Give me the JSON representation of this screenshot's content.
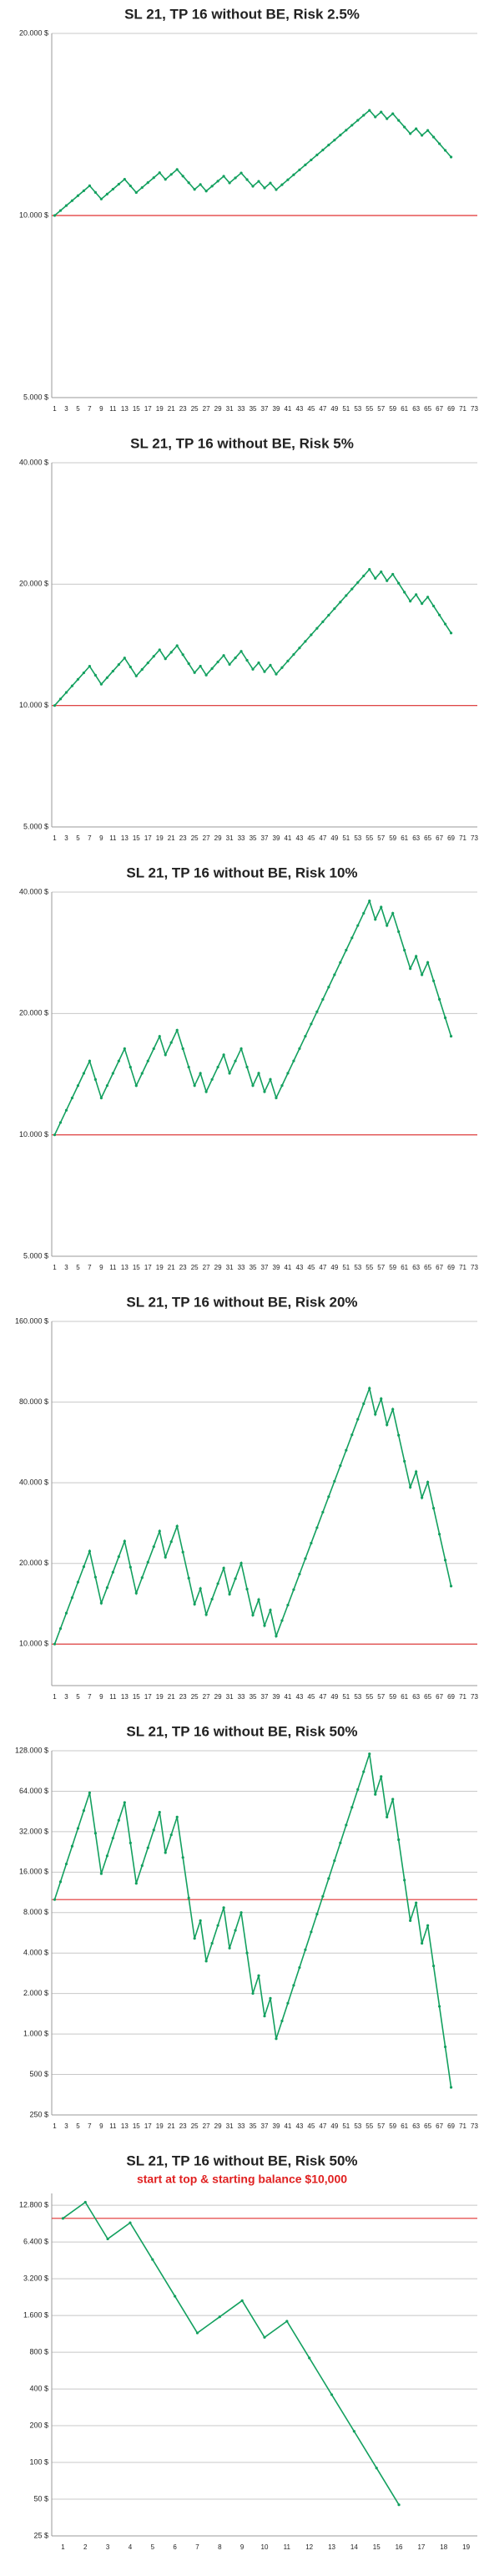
{
  "chart_data": [
    {
      "type": "line",
      "title": "SL 21, TP 16 without BE, Risk 2.5%",
      "log": true,
      "grid": true,
      "color": "#13a05f",
      "reference_line": {
        "value": 10000,
        "color": "#e03030"
      },
      "ylim": [
        5000,
        20000
      ],
      "yticks": [
        {
          "value": 5000,
          "label": "5.000 $"
        },
        {
          "value": 10000,
          "label": "10.000 $"
        },
        {
          "value": 20000,
          "label": "20.000 $"
        }
      ],
      "categories": [
        1,
        null,
        3,
        null,
        5,
        null,
        7,
        null,
        9,
        null,
        11,
        null,
        13,
        null,
        15,
        null,
        17,
        null,
        19,
        null,
        21,
        null,
        23,
        null,
        25,
        null,
        27,
        null,
        29,
        null,
        31,
        null,
        33,
        null,
        35,
        null,
        37,
        null,
        39,
        null,
        41,
        null,
        43,
        null,
        45,
        null,
        47,
        null,
        49,
        null,
        51,
        null,
        53,
        null,
        55,
        null,
        57,
        null,
        59,
        null,
        61,
        null,
        63,
        null,
        65,
        null,
        67,
        null,
        69,
        null,
        71,
        null,
        73
      ],
      "values": [
        10000,
        10190,
        10385,
        10582,
        10784,
        10989,
        11199,
        10919,
        10646,
        10849,
        11055,
        11266,
        11480,
        11193,
        10914,
        11122,
        11333,
        11549,
        11769,
        11475,
        11693,
        11916,
        11618,
        11328,
        11045,
        11255,
        10974,
        11183,
        11396,
        11613,
        11322,
        11538,
        11758,
        11464,
        11177,
        11390,
        11105,
        11317,
        11034,
        11244,
        11458,
        11676,
        11899,
        12126,
        12357,
        12592,
        12832,
        13076,
        13325,
        13579,
        13838,
        14101,
        14370,
        14644,
        14923,
        14550,
        14827,
        14456,
        14732,
        14364,
        14005,
        13655,
        13915,
        13567,
        13825,
        13480,
        13143,
        12814,
        12494,
        null,
        null,
        null,
        null
      ]
    },
    {
      "type": "line",
      "title": "SL 21, TP 16 without BE, Risk 5%",
      "log": true,
      "grid": true,
      "color": "#13a05f",
      "reference_line": {
        "value": 10000,
        "color": "#e03030"
      },
      "ylim": [
        5000,
        40000
      ],
      "yticks": [
        {
          "value": 5000,
          "label": "5.000 $"
        },
        {
          "value": 10000,
          "label": "10.000 $"
        },
        {
          "value": 20000,
          "label": "20.000 $"
        },
        {
          "value": 40000,
          "label": "40.000 $"
        }
      ],
      "categories": [
        1,
        null,
        3,
        null,
        5,
        null,
        7,
        null,
        9,
        null,
        11,
        null,
        13,
        null,
        15,
        null,
        17,
        null,
        19,
        null,
        21,
        null,
        23,
        null,
        25,
        null,
        27,
        null,
        29,
        null,
        31,
        null,
        33,
        null,
        35,
        null,
        37,
        null,
        39,
        null,
        41,
        null,
        43,
        null,
        45,
        null,
        47,
        null,
        49,
        null,
        51,
        null,
        53,
        null,
        55,
        null,
        57,
        null,
        59,
        null,
        61,
        null,
        63,
        null,
        65,
        null,
        67,
        null,
        69,
        null,
        71,
        null,
        73
      ],
      "values": [
        10000,
        10381,
        10776,
        11187,
        11613,
        12055,
        12515,
        11889,
        11295,
        11725,
        12172,
        12636,
        13117,
        12461,
        11838,
        12289,
        12757,
        13243,
        13748,
        13060,
        13558,
        14074,
        13371,
        12702,
        12067,
        12527,
        11900,
        12354,
        12824,
        13313,
        12647,
        13129,
        13629,
        12948,
        12301,
        12769,
        12131,
        12593,
        11964,
        12419,
        12893,
        13384,
        13894,
        14423,
        14973,
        15543,
        16135,
        16750,
        17388,
        18051,
        18739,
        19453,
        20194,
        20963,
        21762,
        20674,
        21462,
        20389,
        21166,
        20107,
        19102,
        18147,
        18838,
        17896,
        18578,
        17649,
        16767,
        15928,
        15132,
        null,
        null,
        null,
        null
      ]
    },
    {
      "type": "line",
      "title": "SL 21, TP 16 without BE, Risk 10%",
      "log": true,
      "grid": true,
      "color": "#13a05f",
      "reference_line": {
        "value": 10000,
        "color": "#e03030"
      },
      "ylim": [
        5000,
        40000
      ],
      "yticks": [
        {
          "value": 5000,
          "label": "5.000 $"
        },
        {
          "value": 10000,
          "label": "10.000 $"
        },
        {
          "value": 20000,
          "label": "20.000 $"
        },
        {
          "value": 40000,
          "label": "40.000 $"
        }
      ],
      "categories": [
        1,
        null,
        3,
        null,
        5,
        null,
        7,
        null,
        9,
        null,
        11,
        null,
        13,
        null,
        15,
        null,
        17,
        null,
        19,
        null,
        21,
        null,
        23,
        null,
        25,
        null,
        27,
        null,
        29,
        null,
        31,
        null,
        33,
        null,
        35,
        null,
        37,
        null,
        39,
        null,
        41,
        null,
        43,
        null,
        45,
        null,
        47,
        null,
        49,
        null,
        51,
        null,
        53,
        null,
        55,
        null,
        57,
        null,
        59,
        null,
        61,
        null,
        63,
        null,
        65,
        null,
        67,
        null,
        69,
        null,
        71,
        null,
        73
      ],
      "values": [
        10000,
        10728,
        11509,
        12347,
        13246,
        14210,
        15245,
        13720,
        12348,
        13247,
        14211,
        15246,
        16356,
        14720,
        13248,
        14212,
        15247,
        16357,
        17548,
        15793,
        16943,
        18176,
        16358,
        14723,
        13250,
        14215,
        12793,
        13724,
        14723,
        15795,
        14216,
        15251,
        16361,
        14725,
        13252,
        14217,
        12795,
        13727,
        12354,
        13254,
        14219,
        15254,
        16364,
        17556,
        18834,
        20205,
        21676,
        23254,
        24947,
        26763,
        28711,
        30801,
        33043,
        35449,
        38029,
        34226,
        36718,
        33046,
        35452,
        31907,
        28716,
        25844,
        27726,
        24953,
        26770,
        24093,
        21684,
        19515,
        17564,
        null,
        null,
        null,
        null
      ]
    },
    {
      "type": "line",
      "title": "SL 21, TP 16 without BE, Risk 20%",
      "log": true,
      "grid": true,
      "color": "#13a05f",
      "reference_line": {
        "value": 10000,
        "color": "#e03030"
      },
      "ylim": [
        7000,
        160000
      ],
      "yticks": [
        {
          "value": 10000,
          "label": "10.000 $"
        },
        {
          "value": 20000,
          "label": "20.000 $"
        },
        {
          "value": 40000,
          "label": "40.000 $"
        },
        {
          "value": 80000,
          "label": "80.000 $"
        },
        {
          "value": 160000,
          "label": "160.000 $"
        }
      ],
      "categories": [
        1,
        null,
        3,
        null,
        5,
        null,
        7,
        null,
        9,
        null,
        11,
        null,
        13,
        null,
        15,
        null,
        17,
        null,
        19,
        null,
        21,
        null,
        23,
        null,
        25,
        null,
        27,
        null,
        29,
        null,
        31,
        null,
        33,
        null,
        35,
        null,
        37,
        null,
        39,
        null,
        41,
        null,
        43,
        null,
        45,
        null,
        47,
        null,
        49,
        null,
        51,
        null,
        53,
        null,
        55,
        null,
        57,
        null,
        59,
        null,
        61,
        null,
        63,
        null,
        65,
        null,
        67,
        null,
        69,
        null,
        71,
        null,
        73
      ],
      "values": [
        10000,
        11423,
        13049,
        14906,
        17027,
        19450,
        22218,
        17774,
        14219,
        16242,
        18553,
        21193,
        24209,
        19367,
        15494,
        17699,
        20218,
        23095,
        26381,
        21105,
        24108,
        27538,
        22030,
        17624,
        14099,
        16105,
        12884,
        14717,
        16811,
        19203,
        15362,
        17548,
        20045,
        16036,
        12829,
        14655,
        11724,
        13392,
        10714,
        12239,
        13981,
        15971,
        18244,
        20840,
        23806,
        27194,
        31064,
        35484,
        40533,
        46301,
        52890,
        60416,
        69013,
        78834,
        90052,
        72042,
        82294,
        65835,
        75203,
        60162,
        48130,
        38504,
        43983,
        35186,
        40193,
        32154,
        25723,
        20578,
        16462,
        null,
        null,
        null,
        null
      ]
    },
    {
      "type": "line",
      "title": "SL 21, TP 16 without BE, Risk 50%",
      "log": true,
      "grid": true,
      "color": "#13a05f",
      "reference_line": {
        "value": 10000,
        "color": "#e03030"
      },
      "ylim": [
        250,
        128000
      ],
      "yticks": [
        {
          "value": 250,
          "label": "250 $"
        },
        {
          "value": 500,
          "label": "500 $"
        },
        {
          "value": 1000,
          "label": "1.000 $"
        },
        {
          "value": 2000,
          "label": "2.000 $"
        },
        {
          "value": 4000,
          "label": "4.000 $"
        },
        {
          "value": 8000,
          "label": "8.000 $"
        },
        {
          "value": 16000,
          "label": "16.000 $"
        },
        {
          "value": 32000,
          "label": "32.000 $"
        },
        {
          "value": 64000,
          "label": "64.000 $"
        },
        {
          "value": 128000,
          "label": "128.000 $"
        }
      ],
      "categories": [
        1,
        null,
        3,
        null,
        5,
        null,
        7,
        null,
        9,
        null,
        11,
        null,
        13,
        null,
        15,
        null,
        17,
        null,
        19,
        null,
        21,
        null,
        23,
        null,
        25,
        null,
        27,
        null,
        29,
        null,
        31,
        null,
        33,
        null,
        35,
        null,
        37,
        null,
        39,
        null,
        41,
        null,
        43,
        null,
        45,
        null,
        47,
        null,
        49,
        null,
        51,
        null,
        53,
        null,
        55,
        null,
        57,
        null,
        59,
        null,
        61,
        null,
        63,
        null,
        65,
        null,
        67,
        null,
        69,
        null,
        71,
        null,
        73
      ],
      "values": [
        10000,
        13566,
        18404,
        24967,
        33870,
        45948,
        62333,
        31167,
        15583,
        21140,
        28679,
        38906,
        52780,
        26390,
        13195,
        17900,
        24283,
        32943,
        44691,
        22345,
        30314,
        41124,
        20562,
        10281,
        5141,
        6974,
        3487,
        4731,
        6418,
        8706,
        4353,
        5905,
        8011,
        4006,
        2003,
        2717,
        1359,
        1843,
        922,
        1250,
        1696,
        2301,
        3122,
        4235,
        5745,
        7794,
        10573,
        14343,
        19458,
        26397,
        35810,
        48580,
        65904,
        89405,
        121287,
        60643,
        82269,
        41134,
        55803,
        27901,
        13951,
        6975,
        9463,
        4731,
        6419,
        3209,
        1605,
        802,
        401,
        null,
        null,
        null,
        null
      ]
    },
    {
      "type": "line",
      "title": "SL 21, TP 16 without BE, Risk 50%",
      "annotation": "start at top & starting balance $10,000",
      "log": true,
      "grid": true,
      "color": "#13a05f",
      "reference_line": {
        "value": 10000,
        "color": "#e03030"
      },
      "ylim": [
        25,
        16000
      ],
      "yticks": [
        {
          "value": 25,
          "label": "25 $"
        },
        {
          "value": 50,
          "label": "50 $"
        },
        {
          "value": 100,
          "label": "100 $"
        },
        {
          "value": 200,
          "label": "200 $"
        },
        {
          "value": 400,
          "label": "400 $"
        },
        {
          "value": 800,
          "label": "800 $"
        },
        {
          "value": 1600,
          "label": "1.600 $"
        },
        {
          "value": 3200,
          "label": "3.200 $"
        },
        {
          "value": 6400,
          "label": "6.400 $"
        },
        {
          "value": 12800,
          "label": "12.800 $"
        }
      ],
      "categories": [
        1,
        2,
        3,
        4,
        5,
        6,
        7,
        8,
        9,
        10,
        11,
        12,
        13,
        14,
        15,
        16,
        17,
        18,
        19
      ],
      "values": [
        10000,
        13566,
        6783,
        9202,
        4601,
        2300,
        1150,
        1561,
        2117,
        1059,
        1436,
        718,
        359,
        180,
        90,
        45,
        null,
        null,
        null
      ]
    }
  ]
}
